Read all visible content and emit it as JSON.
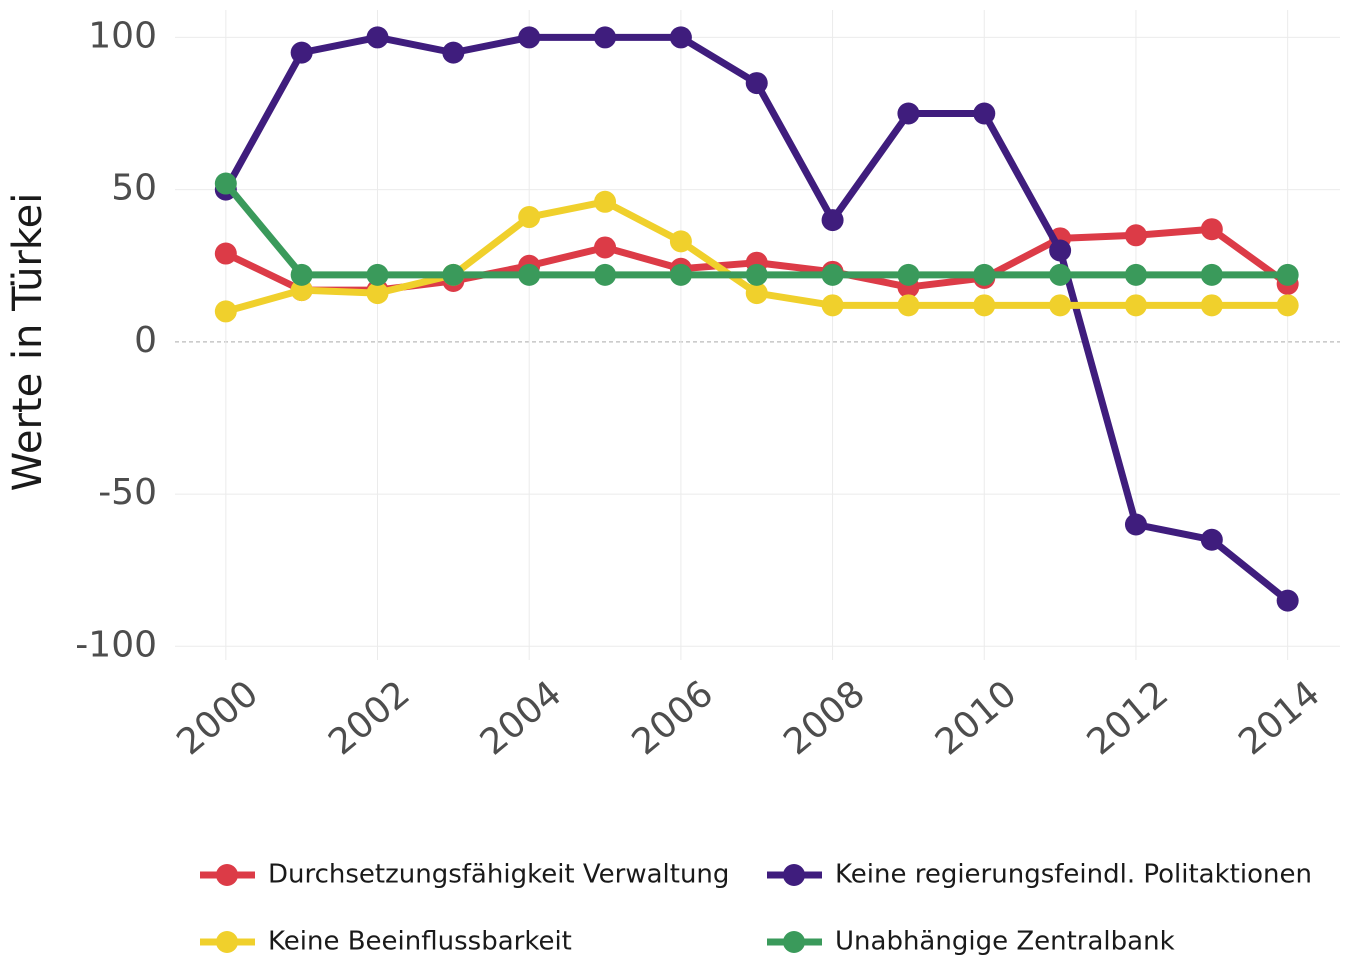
{
  "chart_data": {
    "type": "line",
    "y_label": "Werte in Türkei",
    "x": [
      2000,
      2001,
      2002,
      2003,
      2004,
      2005,
      2006,
      2007,
      2008,
      2009,
      2010,
      2011,
      2012,
      2013,
      2014
    ],
    "series": [
      {
        "name": "Durchsetzungsfähigkeit Verwaltung",
        "color": "#dc3b47",
        "values": [
          29,
          17,
          17,
          20,
          25,
          31,
          24,
          26,
          23,
          18,
          21,
          34,
          35,
          37,
          19
        ]
      },
      {
        "name": "Keine regierungsfeindl. Politaktionen",
        "color": "#3f1d7d",
        "values": [
          50,
          95,
          100,
          95,
          100,
          100,
          100,
          85,
          40,
          75,
          75,
          30,
          -60,
          -65,
          -85
        ]
      },
      {
        "name": "Keine Beeinflussbarkeit",
        "color": "#f0d02c",
        "values": [
          10,
          17,
          16,
          22,
          41,
          46,
          33,
          16,
          12,
          12,
          12,
          12,
          12,
          12,
          12
        ]
      },
      {
        "name": "Unabhängige Zentralbank",
        "color": "#3a9a5b",
        "values": [
          52,
          22,
          22,
          22,
          22,
          22,
          22,
          22,
          22,
          22,
          22,
          22,
          22,
          22,
          22
        ]
      }
    ],
    "xlim": [
      1999.33,
      2014.69
    ],
    "ylim": [
      -104.5,
      109
    ],
    "xticks": [
      2000,
      2002,
      2004,
      2006,
      2008,
      2010,
      2012,
      2014
    ],
    "yticks": [
      -100,
      -50,
      0,
      50,
      100
    ],
    "grid": true,
    "legend": "bottom"
  }
}
